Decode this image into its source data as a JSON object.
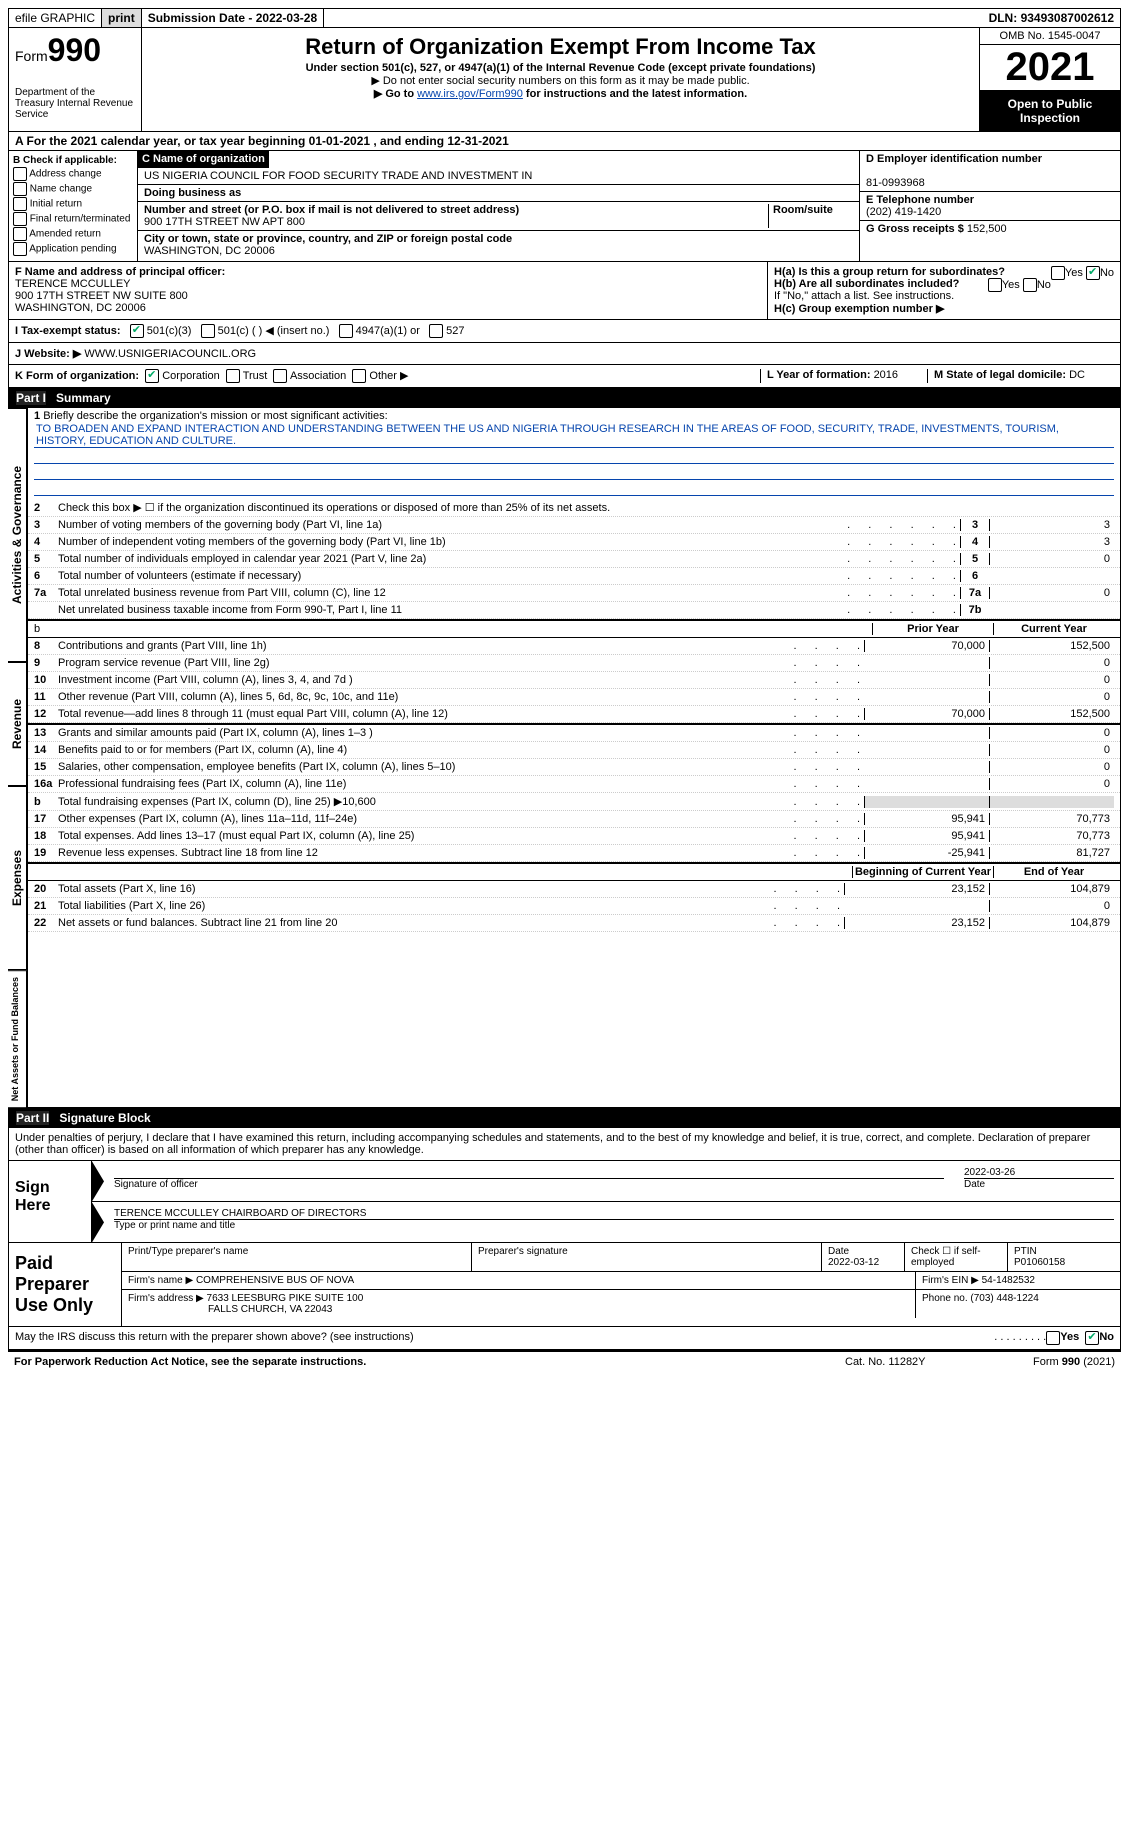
{
  "topbar": {
    "efile": "efile GRAPHIC",
    "print": "print",
    "subdate_lbl": "Submission Date - ",
    "subdate": "2022-03-28",
    "dln_lbl": "DLN: ",
    "dln": "93493087002612"
  },
  "header": {
    "form_lbl": "Form",
    "form_num": "990",
    "dept": "Department of the Treasury\nInternal Revenue Service",
    "title": "Return of Organization Exempt From Income Tax",
    "sub": "Under section 501(c), 527, or 4947(a)(1) of the Internal Revenue Code (except private foundations)",
    "note1": "▶ Do not enter social security numbers on this form as it may be made public.",
    "note2_pre": "▶ Go to ",
    "note2_link": "www.irs.gov/Form990",
    "note2_post": " for instructions and the latest information.",
    "omb": "OMB No. 1545-0047",
    "year": "2021",
    "open": "Open to Public Inspection"
  },
  "sectionA": {
    "text": "A For the 2021 calendar year, or tax year beginning 01-01-2021   , and ending 12-31-2021"
  },
  "colB": {
    "hdr": "B Check if applicable:",
    "opts": [
      "Address change",
      "Name change",
      "Initial return",
      "Final return/terminated",
      "Amended return",
      "Application pending"
    ]
  },
  "colC": {
    "name_lbl": "C Name of organization",
    "name": "US NIGERIA COUNCIL FOR FOOD SECURITY TRADE AND INVESTMENT IN",
    "dba_lbl": "Doing business as",
    "street_lbl": "Number and street (or P.O. box if mail is not delivered to street address)",
    "room_lbl": "Room/suite",
    "street": "900 17TH STREET NW APT 800",
    "city_lbl": "City or town, state or province, country, and ZIP or foreign postal code",
    "city": "WASHINGTON, DC  20006"
  },
  "colD": {
    "ein_lbl": "D Employer identification number",
    "ein": "81-0993968",
    "tel_lbl": "E Telephone number",
    "tel": "(202) 419-1420",
    "gross_lbl": "G Gross receipts $ ",
    "gross": "152,500"
  },
  "rowF": {
    "lbl": "F Name and address of principal officer:",
    "name": "TERENCE MCCULLEY",
    "addr1": "900 17TH STREET NW SUITE 800",
    "addr2": "WASHINGTON, DC  20006"
  },
  "rowH": {
    "ha": "H(a)  Is this a group return for subordinates?",
    "hb": "H(b)  Are all subordinates included?",
    "hb_note": "If \"No,\" attach a list. See instructions.",
    "hc": "H(c)  Group exemption number ▶",
    "yes": "Yes",
    "no": "No"
  },
  "rowI": {
    "lbl": "I   Tax-exempt status:",
    "o1": "501(c)(3)",
    "o2": "501(c) (  ) ◀ (insert no.)",
    "o3": "4947(a)(1) or",
    "o4": "527"
  },
  "rowJ": {
    "lbl": "J   Website: ▶  ",
    "val": "WWW.USNIGERIACOUNCIL.ORG"
  },
  "rowK": {
    "lbl": "K Form of organization:",
    "opts": [
      "Corporation",
      "Trust",
      "Association",
      "Other ▶"
    ],
    "l_lbl": "L Year of formation: ",
    "l_val": "2016",
    "m_lbl": "M State of legal domicile: ",
    "m_val": "DC"
  },
  "part1": {
    "bar_num": "Part I",
    "bar_title": "Summary",
    "tab1": "Activities & Governance",
    "tab2": "Revenue",
    "tab3": "Expenses",
    "tab4": "Net Assets or Fund Balances",
    "l1_lbl": "1",
    "l1_desc": "Briefly describe the organization's mission or most significant activities:",
    "l1_mission": "TO BROADEN AND EXPAND INTERACTION AND UNDERSTANDING BETWEEN THE US AND NIGERIA THROUGH RESEARCH IN THE AREAS OF FOOD, SECURITY, TRADE, INVESTMENTS, TOURISM, HISTORY, EDUCATION AND CULTURE.",
    "l2_desc": "Check this box ▶ ☐  if the organization discontinued its operations or disposed of more than 25% of its net assets.",
    "lines_gov": [
      {
        "n": "3",
        "d": "Number of voting members of the governing body (Part VI, line 1a)",
        "k": "3",
        "v": "3"
      },
      {
        "n": "4",
        "d": "Number of independent voting members of the governing body (Part VI, line 1b)",
        "k": "4",
        "v": "3"
      },
      {
        "n": "5",
        "d": "Total number of individuals employed in calendar year 2021 (Part V, line 2a)",
        "k": "5",
        "v": "0"
      },
      {
        "n": "6",
        "d": "Total number of volunteers (estimate if necessary)",
        "k": "6",
        "v": ""
      },
      {
        "n": "7a",
        "d": "Total unrelated business revenue from Part VIII, column (C), line 12",
        "k": "7a",
        "v": "0"
      },
      {
        "n": "",
        "d": "Net unrelated business taxable income from Form 990-T, Part I, line 11",
        "k": "7b",
        "v": ""
      }
    ],
    "prior_lbl": "Prior Year",
    "curr_lbl": "Current Year",
    "lines_rev": [
      {
        "n": "8",
        "d": "Contributions and grants (Part VIII, line 1h)",
        "p": "70,000",
        "c": "152,500"
      },
      {
        "n": "9",
        "d": "Program service revenue (Part VIII, line 2g)",
        "p": "",
        "c": "0"
      },
      {
        "n": "10",
        "d": "Investment income (Part VIII, column (A), lines 3, 4, and 7d )",
        "p": "",
        "c": "0"
      },
      {
        "n": "11",
        "d": "Other revenue (Part VIII, column (A), lines 5, 6d, 8c, 9c, 10c, and 11e)",
        "p": "",
        "c": "0"
      },
      {
        "n": "12",
        "d": "Total revenue—add lines 8 through 11 (must equal Part VIII, column (A), line 12)",
        "p": "70,000",
        "c": "152,500"
      }
    ],
    "lines_exp": [
      {
        "n": "13",
        "d": "Grants and similar amounts paid (Part IX, column (A), lines 1–3 )",
        "p": "",
        "c": "0"
      },
      {
        "n": "14",
        "d": "Benefits paid to or for members (Part IX, column (A), line 4)",
        "p": "",
        "c": "0"
      },
      {
        "n": "15",
        "d": "Salaries, other compensation, employee benefits (Part IX, column (A), lines 5–10)",
        "p": "",
        "c": "0"
      },
      {
        "n": "16a",
        "d": "Professional fundraising fees (Part IX, column (A), line 11e)",
        "p": "",
        "c": "0"
      },
      {
        "n": "b",
        "d": "Total fundraising expenses (Part IX, column (D), line 25) ▶10,600",
        "p": "shade",
        "c": "shade"
      },
      {
        "n": "17",
        "d": "Other expenses (Part IX, column (A), lines 11a–11d, 11f–24e)",
        "p": "95,941",
        "c": "70,773"
      },
      {
        "n": "18",
        "d": "Total expenses. Add lines 13–17 (must equal Part IX, column (A), line 25)",
        "p": "95,941",
        "c": "70,773"
      },
      {
        "n": "19",
        "d": "Revenue less expenses. Subtract line 18 from line 12",
        "p": "-25,941",
        "c": "81,727"
      }
    ],
    "begin_lbl": "Beginning of Current Year",
    "end_lbl": "End of Year",
    "lines_net": [
      {
        "n": "20",
        "d": "Total assets (Part X, line 16)",
        "p": "23,152",
        "c": "104,879"
      },
      {
        "n": "21",
        "d": "Total liabilities (Part X, line 26)",
        "p": "",
        "c": "0"
      },
      {
        "n": "22",
        "d": "Net assets or fund balances. Subtract line 21 from line 20",
        "p": "23,152",
        "c": "104,879"
      }
    ]
  },
  "part2": {
    "bar_num": "Part II",
    "bar_title": "Signature Block",
    "penalty": "Under penalties of perjury, I declare that I have examined this return, including accompanying schedules and statements, and to the best of my knowledge and belief, it is true, correct, and complete. Declaration of preparer (other than officer) is based on all information of which preparer has any knowledge.",
    "sign_here": "Sign Here",
    "sig_officer_lbl": "Signature of officer",
    "sig_date": "2022-03-26",
    "sig_date_lbl": "Date",
    "sig_name": "TERENCE MCCULLEY CHAIRBOARD OF DIRECTORS",
    "sig_name_lbl": "Type or print name and title",
    "paid_lbl": "Paid Preparer Use Only",
    "prep_name_lbl": "Print/Type preparer's name",
    "prep_sig_lbl": "Preparer's signature",
    "prep_date_lbl": "Date",
    "prep_date": "2022-03-12",
    "prep_self_lbl": "Check ☐ if self-employed",
    "ptin_lbl": "PTIN",
    "ptin": "P01060158",
    "firm_name_lbl": "Firm's name      ▶ ",
    "firm_name": "COMPREHENSIVE BUS OF NOVA",
    "firm_ein_lbl": "Firm's EIN ▶ ",
    "firm_ein": "54-1482532",
    "firm_addr_lbl": "Firm's address ▶ ",
    "firm_addr1": "7633 LEESBURG PIKE SUITE 100",
    "firm_addr2": "FALLS CHURCH, VA  22043",
    "firm_phone_lbl": "Phone no. ",
    "firm_phone": "(703) 448-1224",
    "discuss": "May the IRS discuss this return with the preparer shown above? (see instructions)"
  },
  "footer": {
    "pra": "For Paperwork Reduction Act Notice, see the separate instructions.",
    "cat": "Cat. No. 11282Y",
    "form": "Form 990 (2021)"
  }
}
